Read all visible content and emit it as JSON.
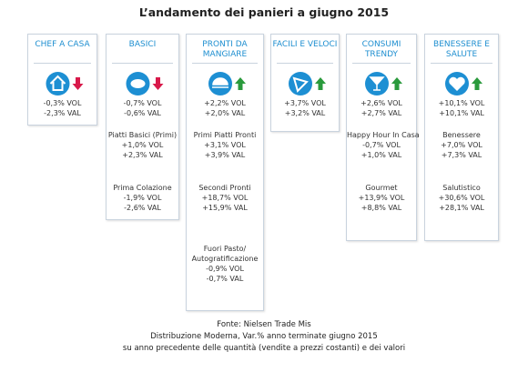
{
  "title": "L’andamento dei panieri a giugno 2015",
  "panels": [
    {
      "title_lines": [
        "CHEF A CASA"
      ],
      "direction": "down",
      "groups": [
        {
          "lines": [
            "-0,3% VOL",
            "-2,3% VAL"
          ]
        }
      ]
    },
    {
      "title_lines": [
        "BASICI"
      ],
      "direction": "down",
      "groups": [
        {
          "lines": [
            "-0,7% VOL",
            "-0,6% VAL"
          ]
        },
        {
          "label_lines": [
            "Piatti Basici (Primi)"
          ],
          "lines": [
            "+1,0% VOL",
            "+2,3% VAL"
          ]
        },
        {
          "label_lines": [
            "Prima Colazione"
          ],
          "lines": [
            "-1,9% VOL",
            "-2,6% VAL"
          ]
        }
      ]
    },
    {
      "title_lines": [
        "PRONTI DA",
        "MANGIARE"
      ],
      "direction": "up",
      "groups": [
        {
          "lines": [
            "+2,2% VOL",
            "+2,0% VAL"
          ]
        },
        {
          "label_lines": [
            "Primi Piatti Pronti"
          ],
          "lines": [
            "+3,1% VOL",
            "+3,9% VAL"
          ]
        },
        {
          "label_lines": [
            "Secondi Pronti"
          ],
          "lines": [
            "+18,7% VOL",
            "+15,9% VAL"
          ]
        },
        {
          "label_lines": [
            "Fuori Pasto/",
            "Autogratificazione"
          ],
          "lines": [
            "-0,9% VOL",
            "-0,7% VAL"
          ]
        }
      ]
    },
    {
      "title_lines": [
        "FACILI E VELOCI"
      ],
      "direction": "up",
      "groups": [
        {
          "lines": [
            "+3,7% VOL",
            "+3,2% VAL"
          ]
        }
      ]
    },
    {
      "title_lines": [
        "CONSUMI",
        "TRENDY"
      ],
      "direction": "up",
      "groups": [
        {
          "lines": [
            "+2,6% VOL",
            "+2,7% VAL"
          ]
        },
        {
          "label_lines": [
            "Happy Hour In Casa"
          ],
          "lines": [
            "-0,7% VOL",
            "+1,0% VAL"
          ]
        },
        {
          "label_lines": [
            "Gourmet"
          ],
          "lines": [
            "+13,9% VOL",
            "+8,8% VAL"
          ]
        }
      ]
    },
    {
      "title_lines": [
        "BENESSERE E",
        "SALUTE"
      ],
      "direction": "up",
      "groups": [
        {
          "lines": [
            "+10,1% VOL",
            "+10,1% VAL"
          ]
        },
        {
          "label_lines": [
            "Benessere"
          ],
          "lines": [
            "+7,0% VOL",
            "+7,3% VAL"
          ]
        },
        {
          "label_lines": [
            "Salutistico"
          ],
          "lines": [
            "+30,6% VOL",
            "+28,1% VAL"
          ]
        }
      ]
    }
  ],
  "footer_lines": [
    "Fonte: Nielsen Trade Mis",
    "Distribuzione Moderna, Var.% anno terminate giugno 2015",
    "su anno precedente delle quantità  (vendite a prezzi costanti) e dei valori"
  ]
}
